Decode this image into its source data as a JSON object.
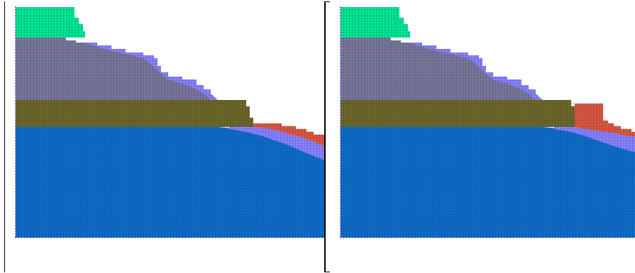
{
  "colors": {
    "material_1": "#00ee90",
    "material_2": "#7b7a98",
    "material_3": "#6e6a22",
    "material_4": "#0d6fc8",
    "material_5": "#8a85ff",
    "material_6": "#e0583b",
    "grid_line": "#1b1b6b",
    "node_dot": "#3333cc",
    "border": "#000000",
    "background": "#ffffff"
  },
  "panels": [
    {
      "id": "left",
      "layout": "before"
    },
    {
      "id": "right",
      "layout": "after"
    }
  ]
}
